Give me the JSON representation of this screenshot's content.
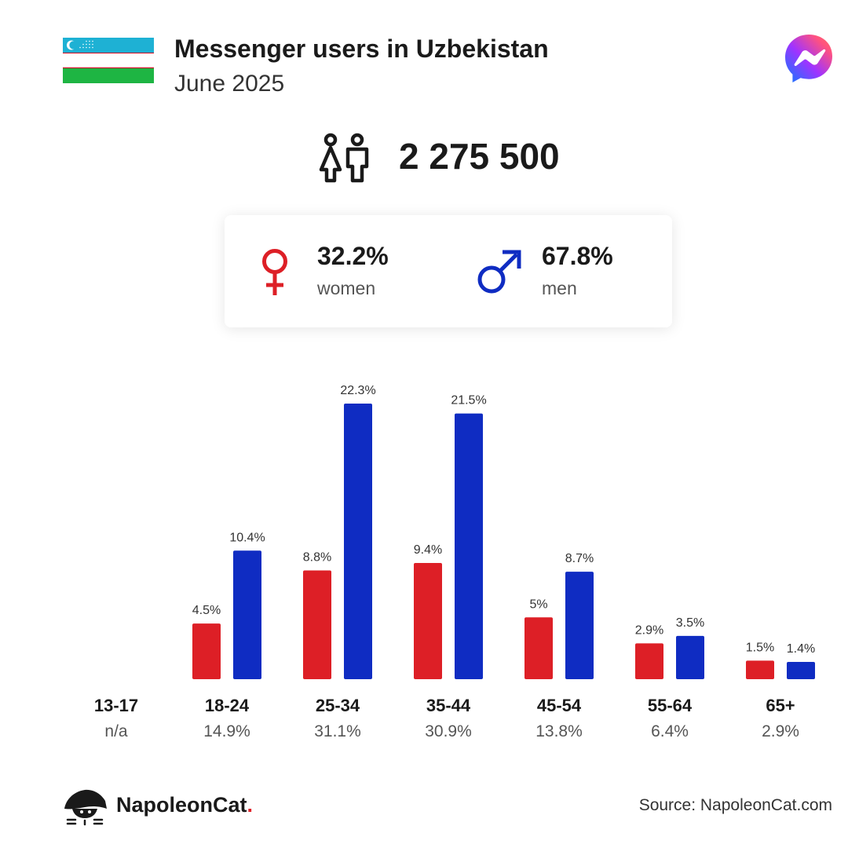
{
  "header": {
    "title": "Messenger users in Uzbekistan",
    "subtitle": "June 2025"
  },
  "icons": {
    "flag": "uzbekistan-flag-icon",
    "app": "messenger-icon",
    "users": "users-icon",
    "female": "female-symbol-icon",
    "male": "male-symbol-icon",
    "logo": "napoleoncat-logo-icon"
  },
  "total": {
    "value": "2 275 500"
  },
  "gender": {
    "women": {
      "pct": "32.2%",
      "label": "women"
    },
    "men": {
      "pct": "67.8%",
      "label": "men"
    }
  },
  "colors": {
    "women": "#dd1f26",
    "men": "#0f2cc2",
    "flag_blue": "#1eb1d4",
    "flag_green": "#1eb543",
    "flag_red": "#ce1126"
  },
  "chart_data": {
    "type": "bar",
    "categories": [
      "13-17",
      "18-24",
      "25-34",
      "35-44",
      "45-54",
      "55-64",
      "65+"
    ],
    "totals": [
      "n/a",
      "14.9%",
      "31.1%",
      "30.9%",
      "13.8%",
      "6.4%",
      "2.9%"
    ],
    "series": [
      {
        "key": "women",
        "values": [
          null,
          4.5,
          8.8,
          9.4,
          5,
          2.9,
          1.5
        ],
        "labels": [
          "",
          "4.5%",
          "8.8%",
          "9.4%",
          "5%",
          "2.9%",
          "1.5%"
        ]
      },
      {
        "key": "men",
        "values": [
          null,
          10.4,
          22.3,
          21.5,
          8.7,
          3.5,
          1.4
        ],
        "labels": [
          "",
          "10.4%",
          "22.3%",
          "21.5%",
          "8.7%",
          "3.5%",
          "1.4%"
        ]
      }
    ],
    "ylim": [
      0,
      22.3
    ],
    "grid": false,
    "legend": "none"
  },
  "footer": {
    "brand": "NapoleonCat",
    "brand_dot": ".",
    "source": "Source: NapoleonCat.com"
  }
}
